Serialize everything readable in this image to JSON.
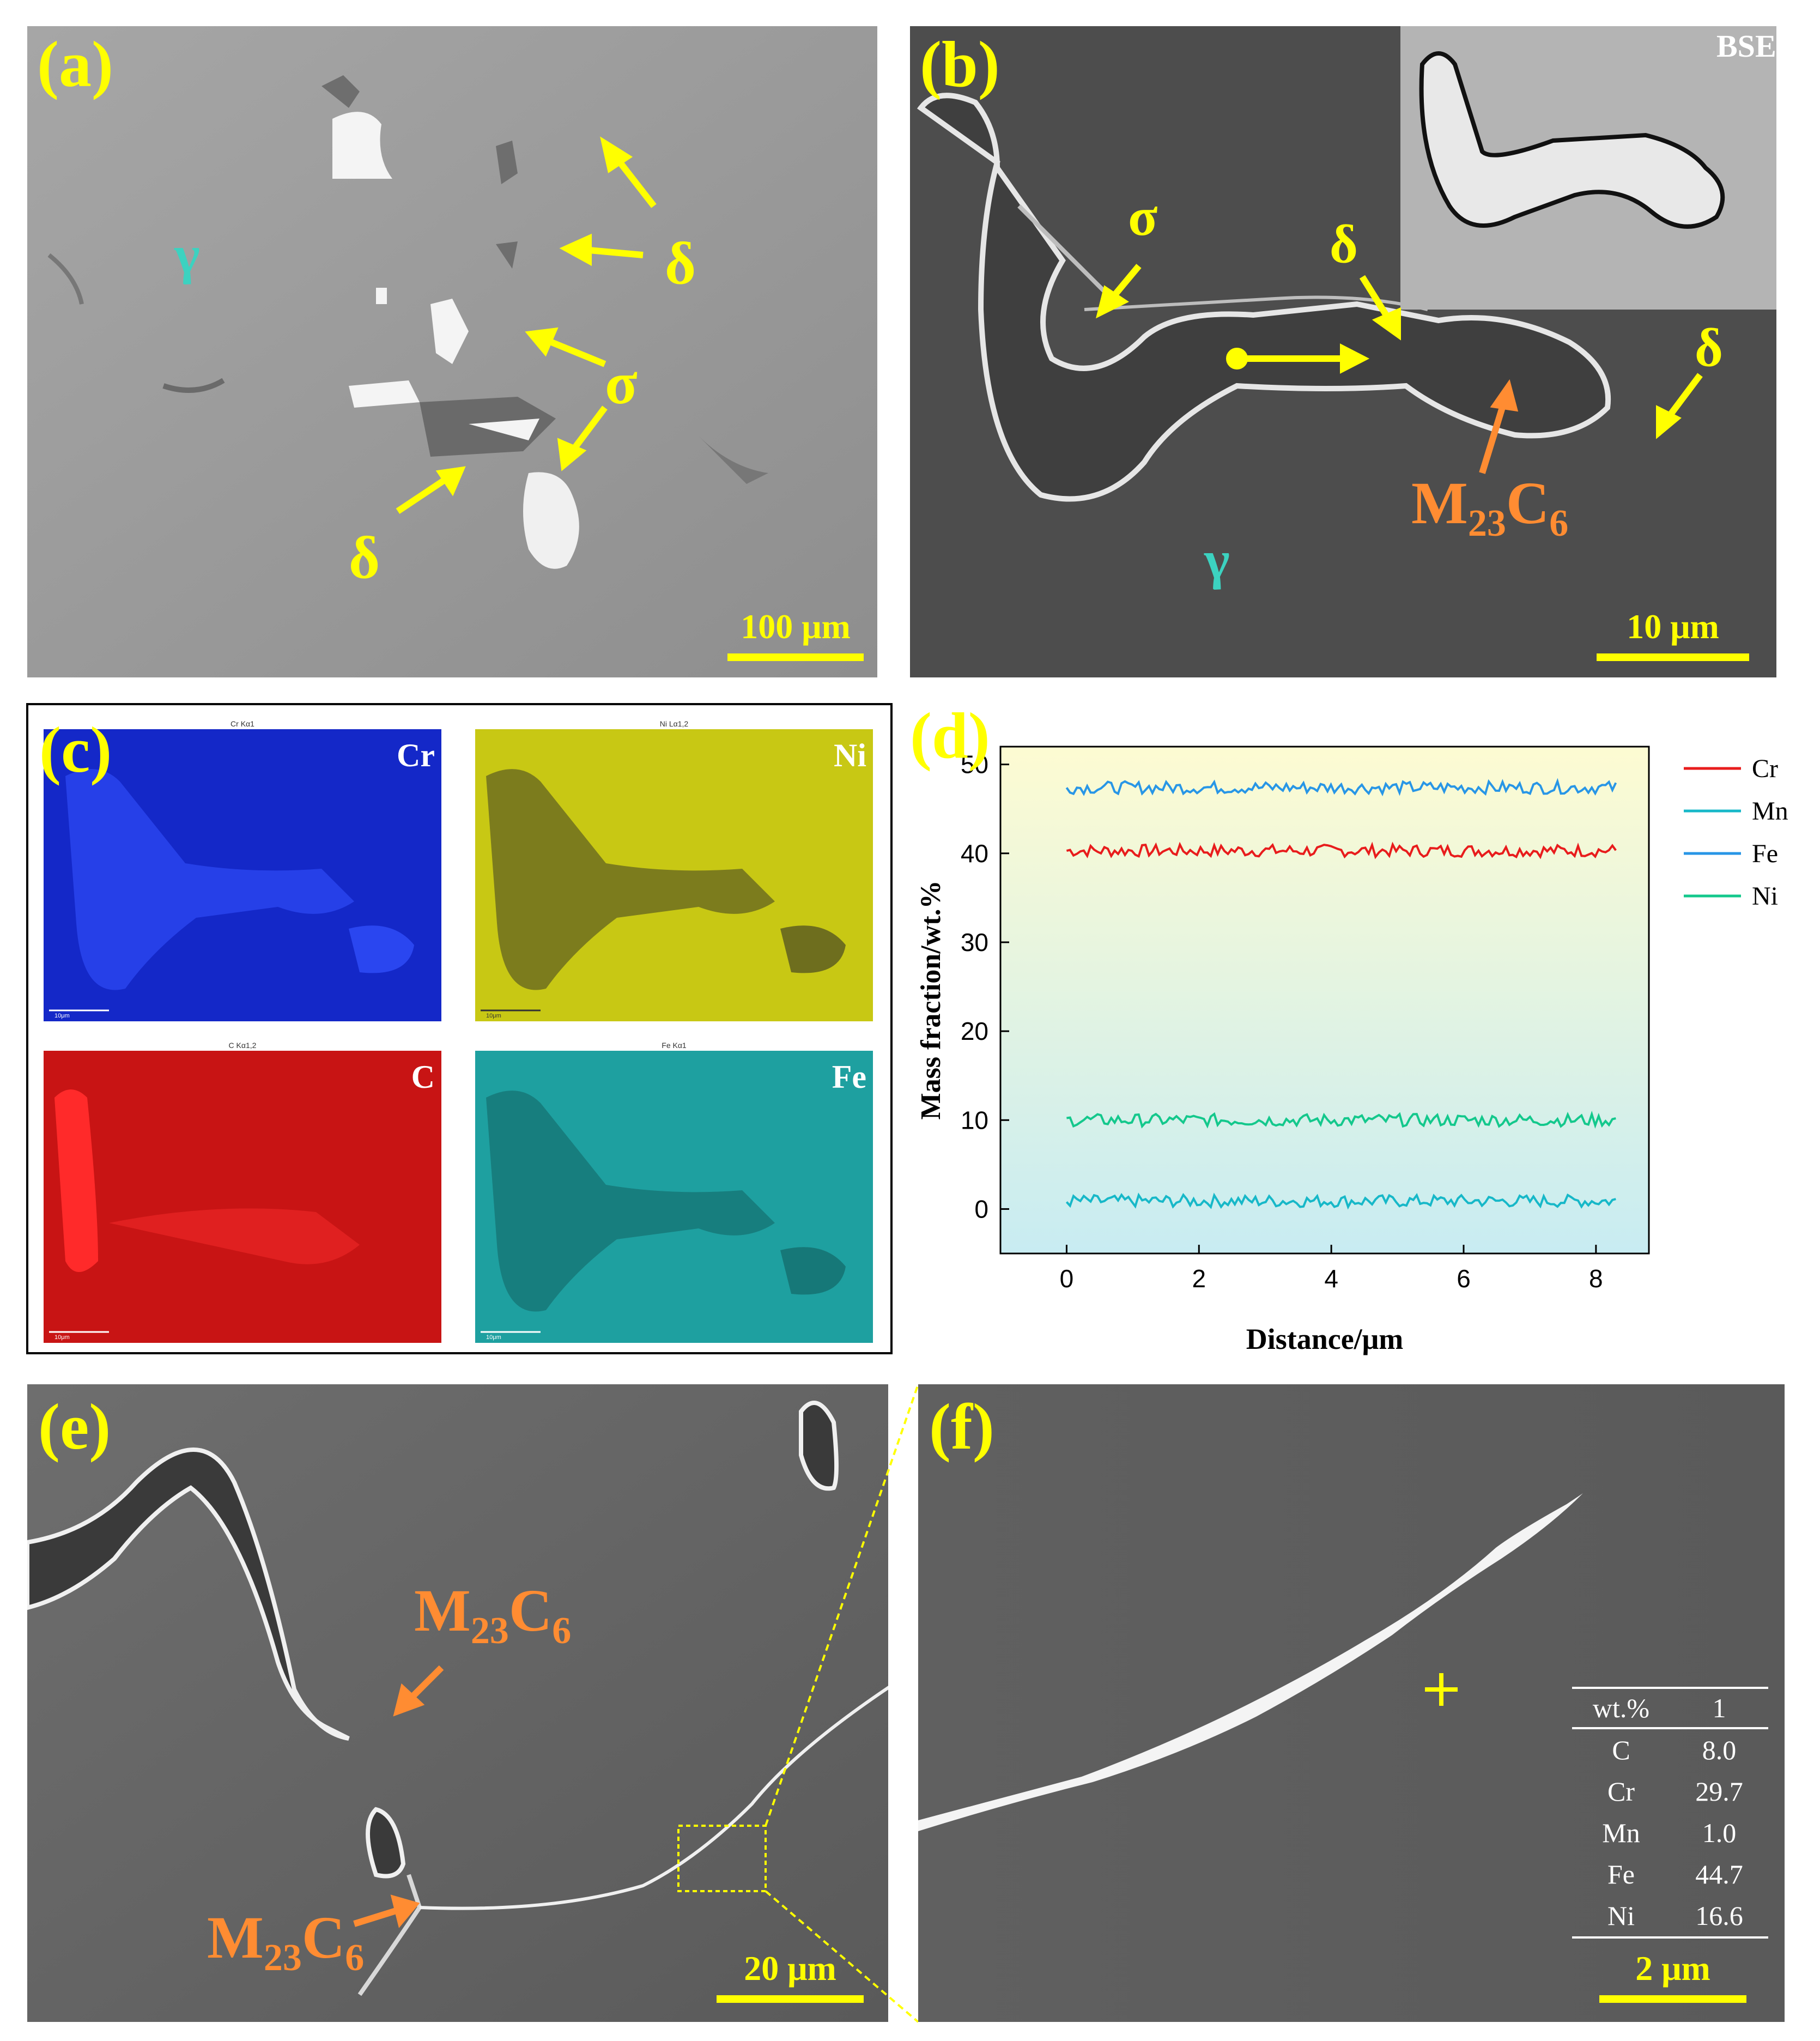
{
  "panels": {
    "a": {
      "label": "(a)",
      "scalebar": "100 μm",
      "phase_gamma": "γ",
      "phase_delta": "δ",
      "phase_sigma": "σ"
    },
    "b": {
      "label": "(b)",
      "inset_label": "BSE",
      "scalebar": "10 μm",
      "phase_gamma": "γ",
      "phase_delta": "δ",
      "phase_sigma": "σ",
      "carbide": "M",
      "carbide_sub1": "23",
      "carbide_c": "C",
      "carbide_sub2": "6"
    },
    "c": {
      "label": "(c)",
      "maps": [
        {
          "element": "Cr",
          "title": "Cr Kα1",
          "scale": "10μm",
          "color": "#1428c8"
        },
        {
          "element": "Ni",
          "title": "Ni Lα1,2",
          "scale": "10μm",
          "color": "#c8c814"
        },
        {
          "element": "C",
          "title": "C Kα1,2",
          "scale": "10μm",
          "color": "#c81414"
        },
        {
          "element": "Fe",
          "title": "Fe Kα1",
          "scale": "10μm",
          "color": "#1ea0a0"
        }
      ]
    },
    "d": {
      "label": "(d)"
    },
    "e": {
      "label": "(e)",
      "scalebar": "20 μm",
      "carbide": "M",
      "carbide_sub1": "23",
      "carbide_c": "C",
      "carbide_sub2": "6"
    },
    "f": {
      "label": "(f)",
      "scalebar": "2 μm",
      "table": {
        "headers": [
          "wt.%",
          "1"
        ],
        "rows": [
          [
            "C",
            "8.0"
          ],
          [
            "Cr",
            "29.7"
          ],
          [
            "Mn",
            "1.0"
          ],
          [
            "Fe",
            "44.7"
          ],
          [
            "Ni",
            "16.6"
          ]
        ]
      }
    }
  },
  "chart_data": {
    "type": "line",
    "xlabel": "Distance/μm",
    "ylabel": "Mass fraction/wt.%",
    "xlim": [
      -1,
      8.8
    ],
    "ylim": [
      -5,
      52
    ],
    "xticks": [
      0,
      2,
      4,
      6,
      8
    ],
    "yticks": [
      0,
      10,
      20,
      30,
      40,
      50
    ],
    "x_range": [
      0,
      8.3
    ],
    "series": [
      {
        "name": "Cr",
        "color": "#e81c1c",
        "mean": 40.3
      },
      {
        "name": "Mn",
        "color": "#17b8c8",
        "mean": 0.9
      },
      {
        "name": "Fe",
        "color": "#2896e6",
        "mean": 47.4
      },
      {
        "name": "Ni",
        "color": "#14c88c",
        "mean": 10.0
      }
    ],
    "legend_position": "right"
  }
}
